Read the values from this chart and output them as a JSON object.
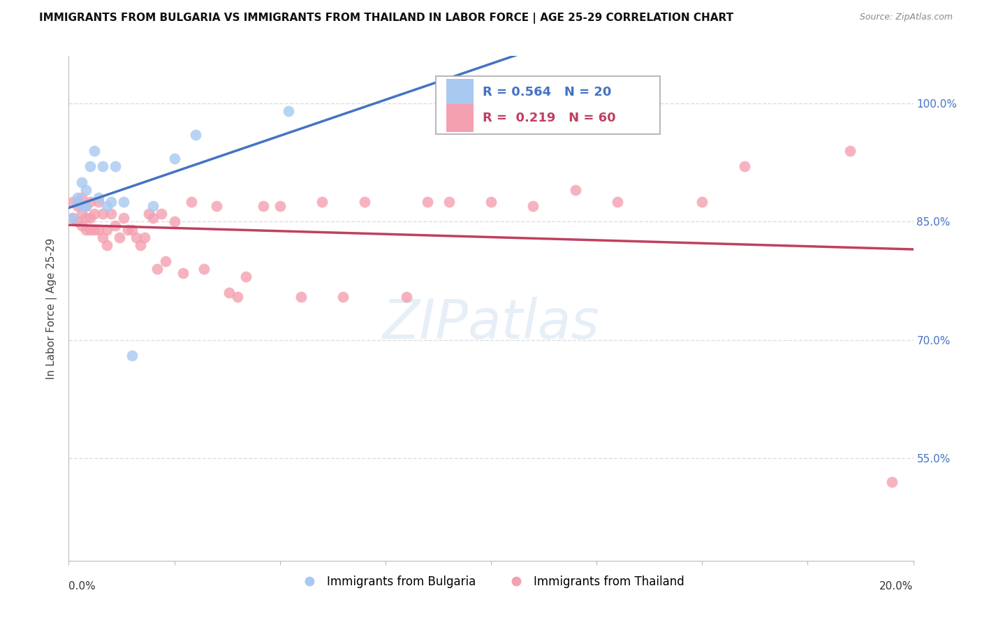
{
  "title": "IMMIGRANTS FROM BULGARIA VS IMMIGRANTS FROM THAILAND IN LABOR FORCE | AGE 25-29 CORRELATION CHART",
  "source": "Source: ZipAtlas.com",
  "ylabel": "In Labor Force | Age 25-29",
  "legend_bulgaria": "Immigrants from Bulgaria",
  "legend_thailand": "Immigrants from Thailand",
  "R_bulgaria": 0.564,
  "N_bulgaria": 20,
  "R_thailand": 0.219,
  "N_thailand": 60,
  "color_bulgaria": "#A8C8F0",
  "color_thailand": "#F4A0B0",
  "line_color_bulgaria": "#4472C4",
  "line_color_thailand": "#C04060",
  "x_min": 0.0,
  "x_max": 0.2,
  "y_min": 0.42,
  "y_max": 1.06,
  "yticks": [
    0.55,
    0.7,
    0.85,
    1.0
  ],
  "ytick_labels": [
    "55.0%",
    "70.0%",
    "85.0%",
    "100.0%"
  ],
  "grid_color": "#DDDDDD",
  "bg_color": "#FFFFFF",
  "bulgaria_x": [
    0.001,
    0.002,
    0.002,
    0.003,
    0.003,
    0.004,
    0.004,
    0.005,
    0.006,
    0.007,
    0.008,
    0.009,
    0.01,
    0.011,
    0.013,
    0.015,
    0.02,
    0.025,
    0.03,
    0.052
  ],
  "bulgaria_y": [
    0.855,
    0.875,
    0.88,
    0.87,
    0.9,
    0.87,
    0.89,
    0.92,
    0.94,
    0.88,
    0.92,
    0.87,
    0.875,
    0.92,
    0.875,
    0.68,
    0.87,
    0.93,
    0.96,
    0.99
  ],
  "thailand_x": [
    0.001,
    0.001,
    0.002,
    0.002,
    0.003,
    0.003,
    0.003,
    0.004,
    0.004,
    0.004,
    0.005,
    0.005,
    0.005,
    0.006,
    0.006,
    0.007,
    0.007,
    0.008,
    0.008,
    0.009,
    0.009,
    0.01,
    0.011,
    0.012,
    0.013,
    0.014,
    0.015,
    0.016,
    0.017,
    0.018,
    0.019,
    0.02,
    0.021,
    0.022,
    0.023,
    0.025,
    0.027,
    0.029,
    0.032,
    0.035,
    0.038,
    0.04,
    0.042,
    0.046,
    0.05,
    0.055,
    0.06,
    0.065,
    0.07,
    0.08,
    0.085,
    0.09,
    0.1,
    0.11,
    0.12,
    0.13,
    0.15,
    0.16,
    0.185,
    0.195
  ],
  "thailand_y": [
    0.875,
    0.855,
    0.87,
    0.85,
    0.88,
    0.86,
    0.845,
    0.87,
    0.855,
    0.84,
    0.855,
    0.875,
    0.84,
    0.86,
    0.84,
    0.875,
    0.84,
    0.86,
    0.83,
    0.84,
    0.82,
    0.86,
    0.845,
    0.83,
    0.855,
    0.84,
    0.84,
    0.83,
    0.82,
    0.83,
    0.86,
    0.855,
    0.79,
    0.86,
    0.8,
    0.85,
    0.785,
    0.875,
    0.79,
    0.87,
    0.76,
    0.755,
    0.78,
    0.87,
    0.87,
    0.755,
    0.875,
    0.755,
    0.875,
    0.755,
    0.875,
    0.875,
    0.875,
    0.87,
    0.89,
    0.875,
    0.875,
    0.92,
    0.94,
    0.52
  ]
}
